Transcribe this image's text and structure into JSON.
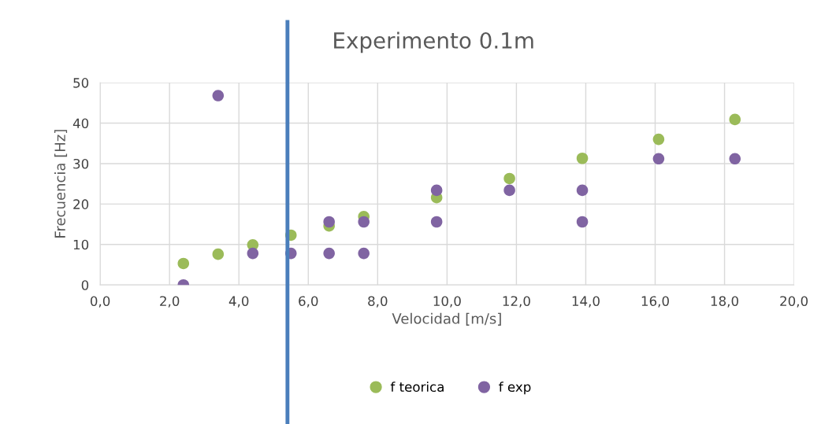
{
  "chart_data": {
    "type": "scatter",
    "title": "Experimento 0.1m",
    "xlabel": "Velocidad [m/s]",
    "ylabel": "Frecuencia [Hz]",
    "xlim": [
      0,
      20
    ],
    "xticks": [
      {
        "value": 0,
        "label": "0,0"
      },
      {
        "value": 2,
        "label": "2,0"
      },
      {
        "value": 4,
        "label": "4,0"
      },
      {
        "value": 6,
        "label": "6,0"
      },
      {
        "value": 8,
        "label": "8,0"
      },
      {
        "value": 10,
        "label": "10,0"
      },
      {
        "value": 12,
        "label": "12,0"
      },
      {
        "value": 14,
        "label": "14,0"
      },
      {
        "value": 16,
        "label": "16,0"
      },
      {
        "value": 18,
        "label": "18,0"
      },
      {
        "value": 20,
        "label": "20,0"
      }
    ],
    "ylim": [
      0,
      50
    ],
    "yticks": [
      0,
      10,
      20,
      30,
      40,
      50
    ],
    "grid": true,
    "legend": "bottom",
    "marker": "circle",
    "ref_lines": [
      {
        "axis": "x",
        "value": 5.4,
        "color": "#4a7ebb"
      }
    ],
    "series": [
      {
        "name": "f teorica",
        "color": "#9bbb59",
        "x": [
          2.4,
          3.4,
          4.4,
          5.5,
          6.6,
          7.6,
          9.7,
          11.8,
          13.9,
          16.1,
          18.3
        ],
        "values": [
          5.3,
          7.6,
          9.9,
          12.3,
          14.6,
          16.9,
          21.6,
          26.3,
          31.3,
          36.0,
          40.9
        ]
      },
      {
        "name": "f exp",
        "color": "#8064a2",
        "x": [
          2.4,
          3.4,
          4.4,
          5.5,
          6.6,
          6.6,
          7.6,
          7.6,
          9.7,
          9.7,
          11.8,
          13.9,
          13.9,
          16.1,
          18.3
        ],
        "values": [
          0,
          46.8,
          7.8,
          7.8,
          15.6,
          7.8,
          15.6,
          7.8,
          23.4,
          15.6,
          23.4,
          23.4,
          15.6,
          31.2,
          31.2
        ]
      }
    ]
  }
}
